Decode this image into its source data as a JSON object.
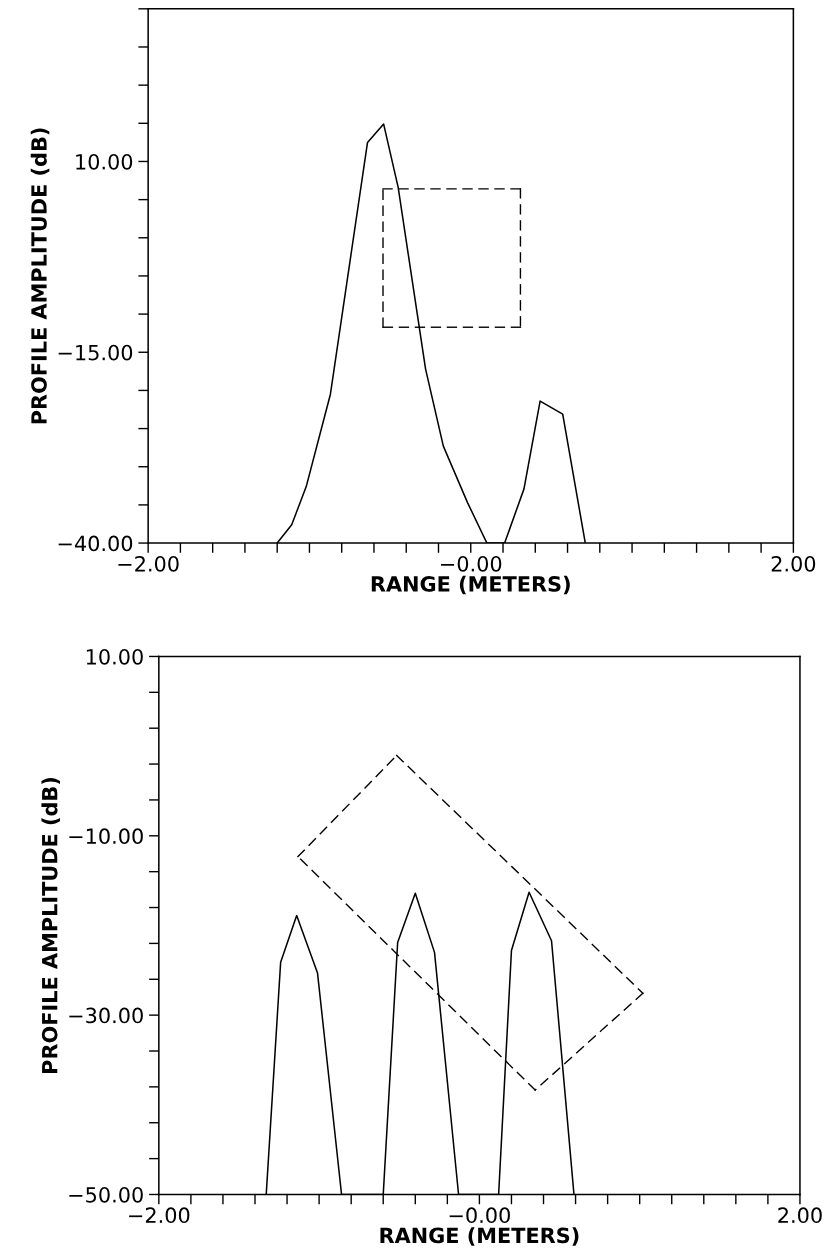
{
  "chart_data": [
    {
      "type": "line",
      "xlabel": "RANGE (METERS)",
      "ylabel": "PROFILE AMPLITUDE (dB)",
      "x": [
        -1.2,
        -1.11,
        -1.02,
        -0.87,
        -0.64,
        -0.54,
        -0.45,
        -0.28,
        -0.17,
        -0.02,
        0.1,
        0.21,
        0.33,
        0.43,
        0.57,
        0.71
      ],
      "series": [
        {
          "color": "#000000",
          "values": [
            -40,
            -37.6,
            -32.6,
            -20.5,
            12.5,
            14.9,
            6.6,
            -17.2,
            -27.3,
            -34.7,
            -40,
            -40,
            -32.9,
            -21.4,
            -23.1,
            -40
          ]
        }
      ],
      "xlim": [
        -2,
        2
      ],
      "ylim": [
        -40,
        30
      ],
      "xticks": [
        {
          "value": -2,
          "label": "−2.00"
        },
        {
          "value": -1.8,
          "label": null
        },
        {
          "value": -1.6,
          "label": null
        },
        {
          "value": -1.4,
          "label": null
        },
        {
          "value": -1.2,
          "label": null
        },
        {
          "value": -1.0,
          "label": null
        },
        {
          "value": -0.8,
          "label": null
        },
        {
          "value": -0.6,
          "label": null
        },
        {
          "value": -0.4,
          "label": null
        },
        {
          "value": -0.2,
          "label": null
        },
        {
          "value": 0,
          "label": "−0.00"
        },
        {
          "value": 0.2,
          "label": null
        },
        {
          "value": 0.4,
          "label": null
        },
        {
          "value": 0.6,
          "label": null
        },
        {
          "value": 0.8,
          "label": null
        },
        {
          "value": 1.0,
          "label": null
        },
        {
          "value": 1.2,
          "label": null
        },
        {
          "value": 1.4,
          "label": null
        },
        {
          "value": 1.6,
          "label": null
        },
        {
          "value": 1.8,
          "label": null
        },
        {
          "value": 2,
          "label": "2.00"
        }
      ],
      "yticks": [
        {
          "value": -40,
          "label": "−40.00"
        },
        {
          "value": -35,
          "label": null
        },
        {
          "value": -30,
          "label": null
        },
        {
          "value": -25,
          "label": null
        },
        {
          "value": -20,
          "label": null
        },
        {
          "value": -15,
          "label": "−15.00"
        },
        {
          "value": -10,
          "label": null
        },
        {
          "value": -5,
          "label": null
        },
        {
          "value": 0,
          "label": null
        },
        {
          "value": 5,
          "label": null
        },
        {
          "value": 10,
          "label": "10.00"
        },
        {
          "value": 15,
          "label": null
        },
        {
          "value": 20,
          "label": null
        },
        {
          "value": 25,
          "label": null
        },
        {
          "value": 30,
          "label": null
        }
      ],
      "grid": false,
      "marker": "none",
      "line_style": "solid"
    },
    {
      "type": "line",
      "xlabel": "RANGE (METERS)",
      "ylabel": "PROFILE AMPLITUDE (dB)",
      "x": [
        -1.33,
        -1.24,
        -1.14,
        -1.01,
        -0.86,
        -0.6,
        -0.51,
        -0.4,
        -0.28,
        -0.13,
        0.12,
        0.2,
        0.31,
        0.45,
        0.59
      ],
      "series": [
        {
          "color": "#000000",
          "values": [
            -50,
            -24.1,
            -18.9,
            -25.3,
            -50,
            -50,
            -21.9,
            -16.4,
            -23.0,
            -50,
            -50,
            -22.8,
            -16.3,
            -21.7,
            -50
          ]
        }
      ],
      "xlim": [
        -2,
        2
      ],
      "ylim": [
        -50,
        10
      ],
      "xticks": [
        {
          "value": -2,
          "label": "−2.00"
        },
        {
          "value": -1.8,
          "label": null
        },
        {
          "value": -1.6,
          "label": null
        },
        {
          "value": -1.4,
          "label": null
        },
        {
          "value": -1.2,
          "label": null
        },
        {
          "value": -1.0,
          "label": null
        },
        {
          "value": -0.8,
          "label": null
        },
        {
          "value": -0.6,
          "label": null
        },
        {
          "value": -0.4,
          "label": null
        },
        {
          "value": -0.2,
          "label": null
        },
        {
          "value": 0,
          "label": "−0.00"
        },
        {
          "value": 0.2,
          "label": null
        },
        {
          "value": 0.4,
          "label": null
        },
        {
          "value": 0.6,
          "label": null
        },
        {
          "value": 0.8,
          "label": null
        },
        {
          "value": 1.0,
          "label": null
        },
        {
          "value": 1.2,
          "label": null
        },
        {
          "value": 1.4,
          "label": null
        },
        {
          "value": 1.6,
          "label": null
        },
        {
          "value": 1.8,
          "label": null
        },
        {
          "value": 2,
          "label": "2.00"
        }
      ],
      "yticks": [
        {
          "value": -50,
          "label": "−50.00"
        },
        {
          "value": -46,
          "label": null
        },
        {
          "value": -42,
          "label": null
        },
        {
          "value": -38,
          "label": null
        },
        {
          "value": -34,
          "label": null
        },
        {
          "value": -30,
          "label": "−30.00"
        },
        {
          "value": -26,
          "label": null
        },
        {
          "value": -22,
          "label": null
        },
        {
          "value": -18,
          "label": null
        },
        {
          "value": -14,
          "label": null
        },
        {
          "value": -10,
          "label": "−10.00"
        },
        {
          "value": -6,
          "label": null
        },
        {
          "value": -2,
          "label": null
        },
        {
          "value": 2,
          "label": null
        },
        {
          "value": 6,
          "label": null
        },
        {
          "value": 10,
          "label": "10.00"
        }
      ],
      "grid": false,
      "marker": "none",
      "line_style": "solid"
    }
  ]
}
